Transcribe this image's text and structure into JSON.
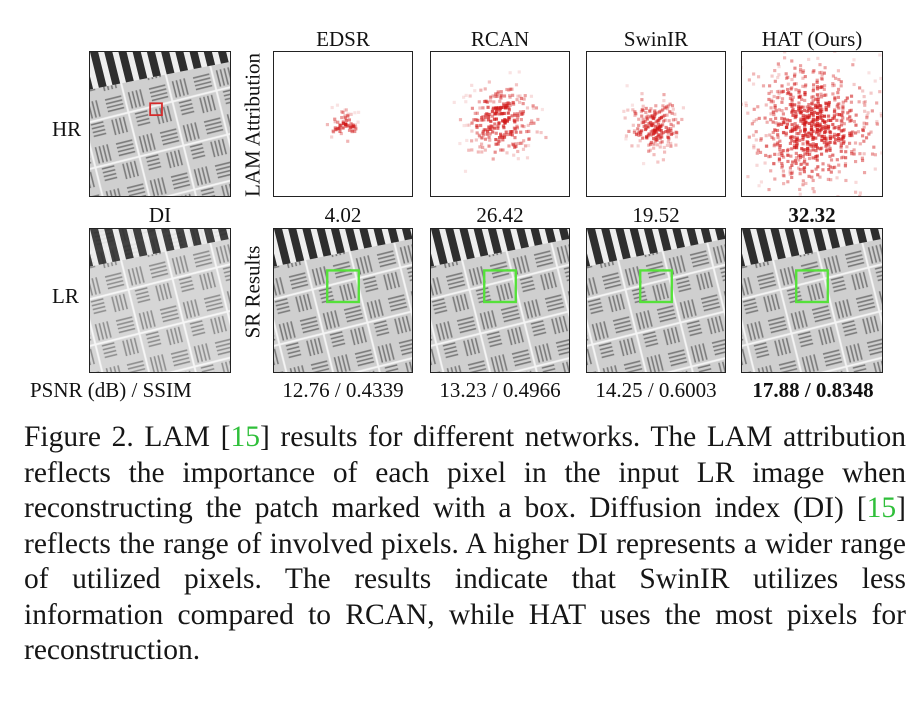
{
  "columns": [
    "EDSR",
    "RCAN",
    "SwinIR",
    "HAT (Ours)"
  ],
  "row_labels": {
    "top": "HR",
    "bottom": "LR"
  },
  "side_labels": {
    "top": "LAM Attribution",
    "bottom": "SR Results"
  },
  "di_label": "DI",
  "di_values": [
    "4.02",
    "26.42",
    "19.52",
    "32.32"
  ],
  "metric_label": "PSNR (dB) / SSIM",
  "metric_values": [
    "12.76 / 0.4339",
    "13.23 / 0.4966",
    "14.25 / 0.6003",
    "17.88 / 0.8348"
  ],
  "caption": {
    "p1": "Figure 2.  LAM [",
    "ref1": "15",
    "p2": "] results for different networks.  The LAM attribution reflects the importance of each pixel in the input LR image when reconstructing the patch marked with a box. Diffusion index (DI) [",
    "ref2": "15",
    "p3": "] reflects the range of involved pixels.  A higher DI represents a wider range of utilized pixels.  The results indicate that SwinIR utilizes less information compared to RCAN, while HAT uses the most pixels for reconstruction."
  },
  "colors": {
    "attribution": "#d11a1a",
    "hr_box": "#d42b2b",
    "sr_box": "#55e13a",
    "reference": "#2fbf3a"
  }
}
